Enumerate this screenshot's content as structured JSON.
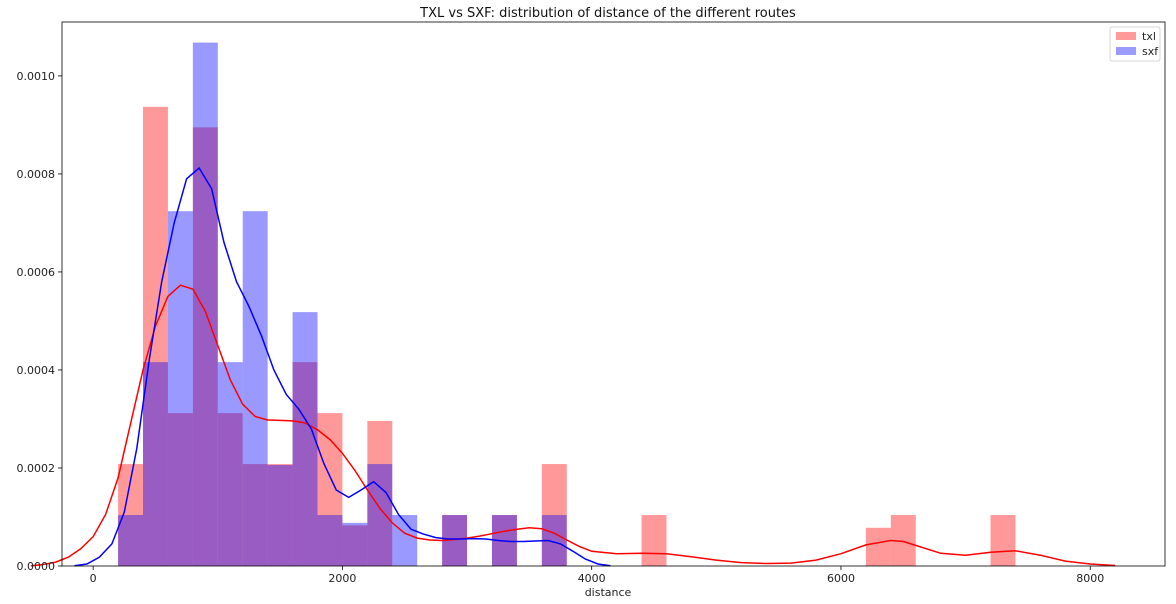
{
  "chart_data": {
    "type": "histogram",
    "title": "TXL vs SXF: distribution of distance of the different routes",
    "xlabel": "distance",
    "ylabel": "",
    "xlim": [
      -250,
      8600
    ],
    "ylim": [
      0,
      0.00111
    ],
    "x_ticks": [
      {
        "value": 0,
        "label": "0"
      },
      {
        "value": 2000,
        "label": "2000"
      },
      {
        "value": 4000,
        "label": "4000"
      },
      {
        "value": 6000,
        "label": "6000"
      },
      {
        "value": 8000,
        "label": "8000"
      }
    ],
    "y_ticks": [
      {
        "value": 0,
        "label": "0.0000"
      },
      {
        "value": 0.0002,
        "label": "0.0002"
      },
      {
        "value": 0.0004,
        "label": "0.0004"
      },
      {
        "value": 0.0006,
        "label": "0.0006"
      },
      {
        "value": 0.0008,
        "label": "0.0008"
      },
      {
        "value": 0.001,
        "label": "0.0010"
      }
    ],
    "grid": false,
    "legend_position": "top-right",
    "series": [
      {
        "name": "txl",
        "color": "#ff0000",
        "bar_color": "#ff9a9a",
        "bars": [
          {
            "x0": 200,
            "x1": 400,
            "density": 0.000208
          },
          {
            "x0": 400,
            "x1": 600,
            "density": 0.000937
          },
          {
            "x0": 600,
            "x1": 800,
            "density": 0.000312
          },
          {
            "x0": 800,
            "x1": 1000,
            "density": 0.000895
          },
          {
            "x0": 1000,
            "x1": 1200,
            "density": 0.000312
          },
          {
            "x0": 1200,
            "x1": 1400,
            "density": 0.000208
          },
          {
            "x0": 1400,
            "x1": 1600,
            "density": 0.000208
          },
          {
            "x0": 1600,
            "x1": 1800,
            "density": 0.000416
          },
          {
            "x0": 1800,
            "x1": 2000,
            "density": 0.000312
          },
          {
            "x0": 2000,
            "x1": 2200,
            "density": 8.3e-05
          },
          {
            "x0": 2200,
            "x1": 2400,
            "density": 0.000296
          },
          {
            "x0": 2800,
            "x1": 3000,
            "density": 0.000104
          },
          {
            "x0": 3200,
            "x1": 3400,
            "density": 0.000104
          },
          {
            "x0": 3600,
            "x1": 3800,
            "density": 0.000208
          },
          {
            "x0": 4400,
            "x1": 4600,
            "density": 0.000104
          },
          {
            "x0": 6200,
            "x1": 6400,
            "density": 7.8e-05
          },
          {
            "x0": 6400,
            "x1": 6600,
            "density": 0.000104
          },
          {
            "x0": 7200,
            "x1": 7400,
            "density": 0.000104
          }
        ],
        "kde": [
          [
            -500,
            3e-07
          ],
          [
            -400,
            3e-06
          ],
          [
            -300,
            8e-06
          ],
          [
            -200,
            1.8e-05
          ],
          [
            -100,
            3.5e-05
          ],
          [
            0,
            6e-05
          ],
          [
            100,
            0.000105
          ],
          [
            200,
            0.00018
          ],
          [
            300,
            0.00029
          ],
          [
            400,
            0.0004
          ],
          [
            500,
            0.00049
          ],
          [
            600,
            0.00055
          ],
          [
            700,
            0.000573
          ],
          [
            800,
            0.000565
          ],
          [
            900,
            0.00052
          ],
          [
            1000,
            0.00045
          ],
          [
            1100,
            0.00038
          ],
          [
            1200,
            0.00033
          ],
          [
            1300,
            0.000305
          ],
          [
            1400,
            0.000298
          ],
          [
            1500,
            0.000297
          ],
          [
            1600,
            0.000296
          ],
          [
            1700,
            0.000292
          ],
          [
            1800,
            0.000278
          ],
          [
            1900,
            0.000258
          ],
          [
            2000,
            0.00023
          ],
          [
            2100,
            0.000195
          ],
          [
            2200,
            0.000155
          ],
          [
            2300,
            0.000118
          ],
          [
            2400,
            8.8e-05
          ],
          [
            2500,
            6.7e-05
          ],
          [
            2600,
            5.7e-05
          ],
          [
            2700,
            5.3e-05
          ],
          [
            2800,
            5.2e-05
          ],
          [
            2900,
            5.4e-05
          ],
          [
            3000,
            5.7e-05
          ],
          [
            3100,
            6.1e-05
          ],
          [
            3200,
            6.6e-05
          ],
          [
            3300,
            7.1e-05
          ],
          [
            3400,
            7.5e-05
          ],
          [
            3500,
            7.8e-05
          ],
          [
            3600,
            7.6e-05
          ],
          [
            3700,
            6.7e-05
          ],
          [
            3800,
            5.3e-05
          ],
          [
            3900,
            4e-05
          ],
          [
            4000,
            3e-05
          ],
          [
            4200,
            2.5e-05
          ],
          [
            4400,
            2.6e-05
          ],
          [
            4600,
            2.5e-05
          ],
          [
            4800,
            1.9e-05
          ],
          [
            5000,
            1.2e-05
          ],
          [
            5200,
            7e-06
          ],
          [
            5400,
            5e-06
          ],
          [
            5600,
            6e-06
          ],
          [
            5800,
            1.2e-05
          ],
          [
            6000,
            2.5e-05
          ],
          [
            6200,
            4.3e-05
          ],
          [
            6400,
            5.2e-05
          ],
          [
            6500,
            5e-05
          ],
          [
            6600,
            4.2e-05
          ],
          [
            6800,
            2.6e-05
          ],
          [
            7000,
            2.2e-05
          ],
          [
            7200,
            2.8e-05
          ],
          [
            7400,
            3.1e-05
          ],
          [
            7600,
            2.2e-05
          ],
          [
            7800,
            1e-05
          ],
          [
            8000,
            4e-06
          ],
          [
            8200,
            1e-06
          ]
        ]
      },
      {
        "name": "sxf",
        "color": "#0000ff",
        "bar_color": "#9a9aff",
        "bars": [
          {
            "x0": 200,
            "x1": 400,
            "density": 0.000104
          },
          {
            "x0": 400,
            "x1": 600,
            "density": 0.000416
          },
          {
            "x0": 600,
            "x1": 800,
            "density": 0.000724
          },
          {
            "x0": 800,
            "x1": 1000,
            "density": 0.001068
          },
          {
            "x0": 1000,
            "x1": 1200,
            "density": 0.000416
          },
          {
            "x0": 1200,
            "x1": 1400,
            "density": 0.000724
          },
          {
            "x0": 1400,
            "x1": 1600,
            "density": 0.000206
          },
          {
            "x0": 1600,
            "x1": 1800,
            "density": 0.000518
          },
          {
            "x0": 1800,
            "x1": 2000,
            "density": 0.000104
          },
          {
            "x0": 2000,
            "x1": 2200,
            "density": 8.8e-05
          },
          {
            "x0": 2200,
            "x1": 2400,
            "density": 0.000208
          },
          {
            "x0": 2400,
            "x1": 2600,
            "density": 0.000104
          },
          {
            "x0": 2800,
            "x1": 3000,
            "density": 0.000104
          },
          {
            "x0": 3200,
            "x1": 3400,
            "density": 0.000104
          },
          {
            "x0": 3600,
            "x1": 3800,
            "density": 0.000104
          }
        ],
        "kde": [
          [
            -150,
            5e-07
          ],
          [
            -50,
            4e-06
          ],
          [
            50,
            1.8e-05
          ],
          [
            150,
            4.5e-05
          ],
          [
            250,
            0.00011
          ],
          [
            350,
            0.00024
          ],
          [
            450,
            0.00042
          ],
          [
            550,
            0.00058
          ],
          [
            650,
            0.0007
          ],
          [
            750,
            0.00079
          ],
          [
            850,
            0.000812
          ],
          [
            950,
            0.00077
          ],
          [
            1050,
            0.00066
          ],
          [
            1150,
            0.00058
          ],
          [
            1250,
            0.00053
          ],
          [
            1350,
            0.00047
          ],
          [
            1450,
            0.0004
          ],
          [
            1550,
            0.00035
          ],
          [
            1650,
            0.00032
          ],
          [
            1750,
            0.00028
          ],
          [
            1850,
            0.00021
          ],
          [
            1950,
            0.000155
          ],
          [
            2050,
            0.00014
          ],
          [
            2150,
            0.000155
          ],
          [
            2250,
            0.000172
          ],
          [
            2350,
            0.00015
          ],
          [
            2450,
            0.000105
          ],
          [
            2550,
            7.5e-05
          ],
          [
            2650,
            6.5e-05
          ],
          [
            2750,
            5.8e-05
          ],
          [
            2850,
            5.5e-05
          ],
          [
            2950,
            5.5e-05
          ],
          [
            3050,
            5.6e-05
          ],
          [
            3150,
            5.5e-05
          ],
          [
            3250,
            5.2e-05
          ],
          [
            3350,
            5e-05
          ],
          [
            3450,
            5e-05
          ],
          [
            3550,
            5.1e-05
          ],
          [
            3650,
            5.2e-05
          ],
          [
            3750,
            4.5e-05
          ],
          [
            3850,
            3e-05
          ],
          [
            3950,
            1.4e-05
          ],
          [
            4050,
            4e-06
          ],
          [
            4150,
            5e-07
          ]
        ]
      }
    ]
  }
}
